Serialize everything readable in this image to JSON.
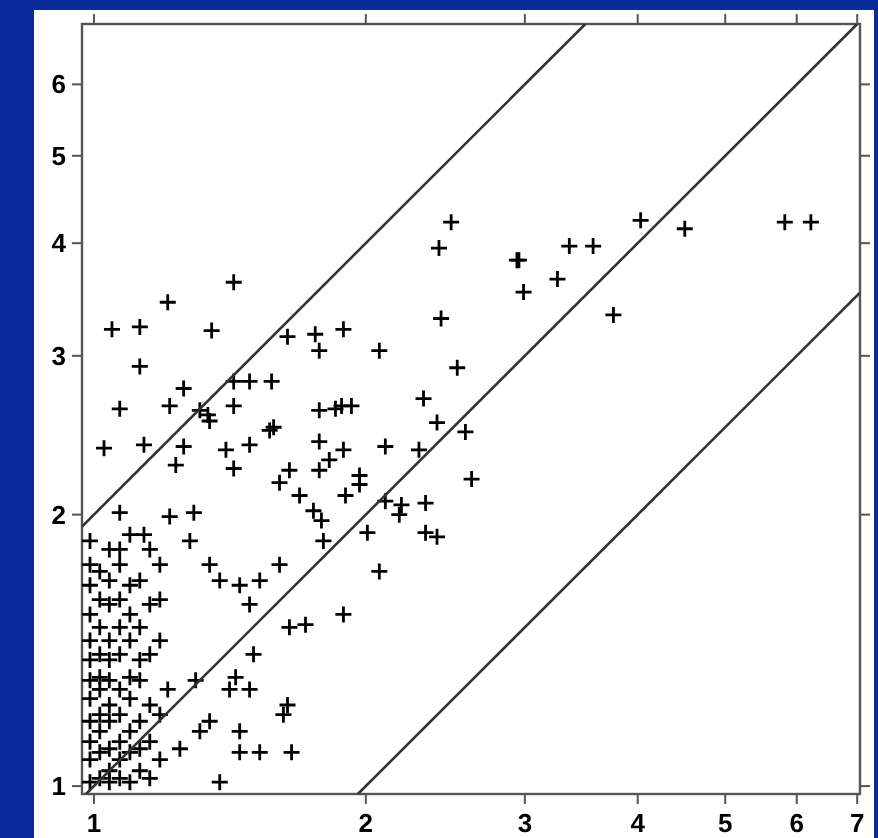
{
  "chart_data": {
    "type": "scatter",
    "log": "xy",
    "xlim": [
      0.97,
      7.05
    ],
    "ylim": [
      0.98,
      7
    ],
    "xticks": [
      1,
      2,
      3,
      4,
      5,
      6,
      7
    ],
    "yticks": [
      1,
      2,
      3,
      4,
      5,
      6
    ],
    "series": [
      {
        "marker": "cross",
        "color": "#000000",
        "x": [
          1.047,
          1.124,
          1.207,
          1.428,
          1.124,
          1.257,
          1.35,
          1.487,
          1.638,
          1.758,
          1.776,
          1.889,
          2.07,
          1.428,
          1.573,
          1.337,
          1.776,
          1.88,
          2.317,
          2.486,
          2.41,
          2.94,
          2.955,
          2.99,
          3.26,
          3.36,
          3.57,
          4.03,
          4.51,
          5.82,
          6.22,
          2.423,
          2.525,
          3.76,
          2.398,
          2.578,
          2.29,
          2.102,
          1.968,
          1.822,
          1.646,
          1.689,
          1.75,
          1.899,
          1.786,
          2.619,
          2.329,
          2.19,
          2.329,
          2.398,
          1.068,
          1.213,
          1.428,
          1.31,
          1.343,
          1.565,
          1.776,
          1.889,
          1.851,
          1.928,
          1.487,
          1.581,
          1.026,
          1.136,
          1.257,
          1.232,
          1.4,
          1.428,
          1.605,
          1.776,
          1.968,
          2.102,
          2.008,
          2.178,
          1.795,
          2.07,
          1.889,
          1.715,
          1.646,
          1.45,
          1.29,
          1.136,
          1.068,
          1.213,
          1.068,
          1.277,
          1.378,
          1.526,
          1.605,
          1.487,
          1.343,
          1.502,
          1.435,
          1.413,
          1.487,
          1.296,
          1.343,
          1.45,
          1.526,
          1.45,
          1.655,
          1.638,
          1.621,
          1.378,
          1.31,
          1.245,
          1.207,
          1.124,
          0.99,
          0.99,
          0.99,
          0.99,
          0.99,
          0.99,
          0.99,
          0.99,
          0.99,
          0.99,
          0.99,
          0.99,
          1.015,
          1.015,
          1.015,
          1.015,
          1.015,
          1.015,
          1.015,
          1.015,
          1.015,
          1.015,
          1.04,
          1.04,
          1.04,
          1.04,
          1.04,
          1.04,
          1.04,
          1.04,
          1.04,
          1.04,
          1.04,
          1.068,
          1.068,
          1.068,
          1.068,
          1.068,
          1.068,
          1.068,
          1.068,
          1.068,
          1.096,
          1.096,
          1.096,
          1.096,
          1.096,
          1.096,
          1.096,
          1.096,
          1.096,
          1.124,
          1.124,
          1.124,
          1.124,
          1.124,
          1.124,
          1.153,
          1.153,
          1.153,
          1.153,
          1.153,
          1.153,
          1.183,
          1.183,
          1.183,
          1.183,
          1.183
        ],
        "values": [
          3.21,
          3.23,
          3.44,
          3.62,
          2.92,
          2.76,
          3.2,
          2.81,
          3.15,
          3.17,
          3.04,
          3.21,
          3.04,
          2.81,
          2.81,
          2.58,
          2.61,
          2.64,
          2.69,
          4.22,
          3.95,
          3.83,
          3.83,
          3.53,
          3.65,
          3.97,
          3.97,
          4.24,
          4.15,
          4.22,
          4.22,
          3.3,
          2.91,
          3.33,
          2.53,
          2.47,
          2.36,
          2.38,
          2.21,
          2.3,
          2.24,
          2.1,
          2.02,
          2.1,
          1.97,
          2.19,
          2.06,
          2.05,
          1.91,
          1.89,
          2.62,
          2.64,
          2.64,
          2.61,
          2.54,
          2.48,
          2.41,
          2.36,
          2.62,
          2.64,
          2.39,
          2.5,
          2.37,
          2.39,
          2.38,
          2.27,
          2.36,
          2.25,
          2.17,
          2.24,
          2.16,
          2.07,
          1.91,
          2,
          1.87,
          1.73,
          1.55,
          1.51,
          1.5,
          1.67,
          2.01,
          1.9,
          1.83,
          1.99,
          2.01,
          1.87,
          1.69,
          1.69,
          1.76,
          1.59,
          1.76,
          1.4,
          1.32,
          1.28,
          1.28,
          1.31,
          1.18,
          1.15,
          1.09,
          1.09,
          1.09,
          1.23,
          1.2,
          1.01,
          1.15,
          1.1,
          1.28,
          1.31,
          1.01,
          1.07,
          1.12,
          1.18,
          1.25,
          1.31,
          1.38,
          1.45,
          1.55,
          1.67,
          1.76,
          1.87,
          1.02,
          1.09,
          1.15,
          1.2,
          1.28,
          1.32,
          1.4,
          1.5,
          1.61,
          1.73,
          1.01,
          1.04,
          1.1,
          1.18,
          1.23,
          1.31,
          1.38,
          1.45,
          1.59,
          1.69,
          1.83,
          1.02,
          1.07,
          1.12,
          1.2,
          1.28,
          1.4,
          1.5,
          1.61,
          1.76,
          1.01,
          1.09,
          1.15,
          1.25,
          1.32,
          1.45,
          1.55,
          1.67,
          1.9,
          1.04,
          1.1,
          1.18,
          1.38,
          1.5,
          1.69,
          1.02,
          1.12,
          1.23,
          1.4,
          1.59,
          1.83,
          1.07,
          1.2,
          1.45,
          1.61,
          1.76
        ]
      },
      {
        "type": "line",
        "color": "#333333",
        "x": [
          0.97,
          3.5
        ],
        "values": [
          1.94,
          7
        ]
      },
      {
        "type": "line",
        "color": "#333333",
        "x": [
          0.98,
          7
        ],
        "values": [
          0.98,
          7
        ]
      },
      {
        "type": "line",
        "color": "#333333",
        "x": [
          1.96,
          7.05
        ],
        "values": [
          0.98,
          3.525
        ]
      }
    ]
  }
}
